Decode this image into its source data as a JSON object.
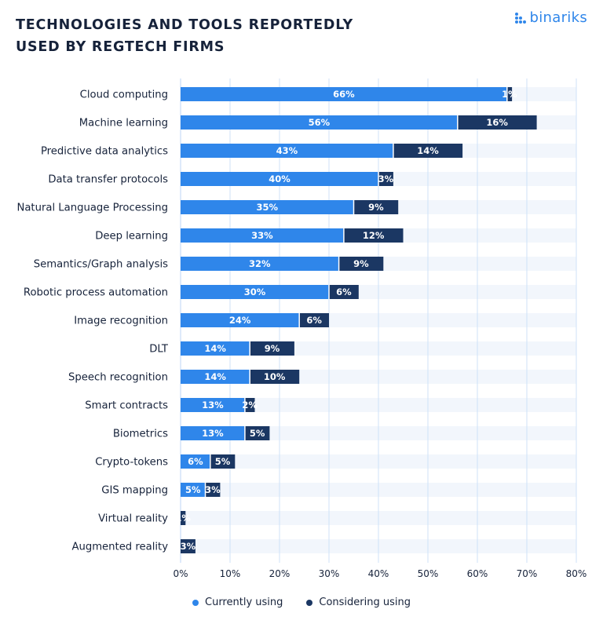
{
  "header": {
    "title_line1": "TECHNOLOGIES AND TOOLS REPORTEDLY",
    "title_line2": "USED BY REGTECH FIRMS",
    "logo_text": "binariks"
  },
  "colors": {
    "currently": "#2f86ea",
    "considering": "#1b3763",
    "track": "#f2f6fc",
    "grid": "#cfe1f7",
    "logo": "#2f86ea"
  },
  "chart_data": {
    "type": "bar",
    "orientation": "horizontal",
    "stacked": true,
    "title": "TECHNOLOGIES AND TOOLS REPORTEDLY USED BY REGTECH FIRMS",
    "categories": [
      "Cloud computing",
      "Machine learning",
      "Predictive data analytics",
      "Data transfer protocols",
      "Natural Language Processing",
      "Deep learning",
      "Semantics/Graph analysis",
      "Robotic process automation",
      "Image recognition",
      "DLT",
      "Speech recognition",
      "Smart contracts",
      "Biometrics",
      "Crypto-tokens",
      "GIS mapping",
      "Virtual reality",
      "Augmented reality"
    ],
    "series": [
      {
        "name": "Currently using",
        "values": [
          66,
          56,
          43,
          40,
          35,
          33,
          32,
          30,
          24,
          14,
          14,
          13,
          13,
          6,
          5,
          0,
          0
        ]
      },
      {
        "name": "Considering using",
        "values": [
          1,
          16,
          14,
          3,
          9,
          12,
          9,
          6,
          6,
          9,
          10,
          2,
          5,
          5,
          3,
          1,
          3
        ]
      }
    ],
    "xlim": [
      0,
      80
    ],
    "xticks": [
      0,
      10,
      20,
      30,
      40,
      50,
      60,
      70,
      80
    ],
    "tick_suffix": "%",
    "value_suffix": "%",
    "grid": true,
    "legend_position": "bottom-center"
  }
}
